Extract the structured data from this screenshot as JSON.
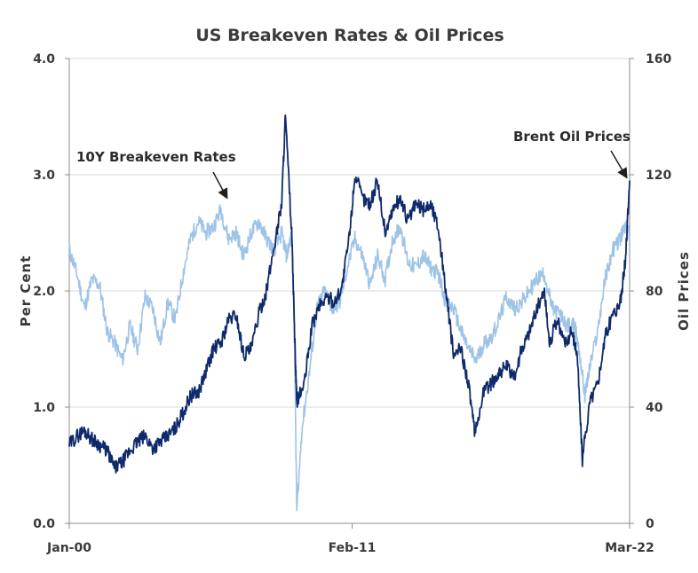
{
  "chart_data": {
    "type": "line",
    "title": "US Breakeven Rates & Oil Prices",
    "ylabel": "Per Cent",
    "y2label": "Oil Prices",
    "ylim": [
      0.0,
      4.0
    ],
    "y2lim": [
      0,
      160
    ],
    "yticks": [
      "0.0",
      "1.0",
      "2.0",
      "3.0",
      "4.0"
    ],
    "y2ticks": [
      "0",
      "40",
      "80",
      "120",
      "160"
    ],
    "xticks": [
      "Jan-00",
      "Feb-11",
      "Mar-22"
    ],
    "xlim": [
      2000.0,
      2022.17
    ],
    "grid": true,
    "colors": {
      "breakeven": "#9dc3e6",
      "oil": "#0f2a6b",
      "grid": "#d9d9d9",
      "axis": "#8c8c8c"
    },
    "annotations": [
      {
        "text": "10Y Breakeven Rates",
        "series": "breakeven"
      },
      {
        "text": "Brent Oil Prices",
        "series": "oil"
      }
    ],
    "series": [
      {
        "key": "breakeven",
        "axis": "left",
        "x": [
          2000.0,
          2000.3,
          2000.6,
          2000.9,
          2001.2,
          2001.5,
          2001.8,
          2002.1,
          2002.4,
          2002.7,
          2003.0,
          2003.3,
          2003.6,
          2003.9,
          2004.2,
          2004.5,
          2004.8,
          2005.1,
          2005.4,
          2005.7,
          2006.0,
          2006.3,
          2006.6,
          2006.9,
          2007.2,
          2007.5,
          2007.8,
          2008.1,
          2008.4,
          2008.6,
          2008.8,
          2008.9,
          2009.0,
          2009.2,
          2009.5,
          2009.8,
          2010.1,
          2010.4,
          2010.7,
          2011.0,
          2011.3,
          2011.6,
          2011.9,
          2012.2,
          2012.5,
          2012.8,
          2013.1,
          2013.4,
          2013.7,
          2014.0,
          2014.3,
          2014.6,
          2014.9,
          2015.2,
          2015.5,
          2015.8,
          2016.1,
          2016.4,
          2016.7,
          2017.0,
          2017.3,
          2017.6,
          2017.9,
          2018.2,
          2018.5,
          2018.8,
          2019.1,
          2019.4,
          2019.7,
          2020.0,
          2020.2,
          2020.4,
          2020.6,
          2020.9,
          2021.2,
          2021.5,
          2021.8,
          2022.0,
          2022.17
        ],
        "y": [
          2.35,
          2.15,
          1.85,
          2.1,
          2.05,
          1.65,
          1.55,
          1.4,
          1.7,
          1.5,
          1.95,
          1.85,
          1.55,
          1.9,
          1.75,
          2.15,
          2.45,
          2.6,
          2.5,
          2.55,
          2.7,
          2.45,
          2.5,
          2.3,
          2.5,
          2.6,
          2.45,
          2.35,
          2.5,
          2.3,
          2.5,
          1.8,
          0.1,
          0.8,
          1.3,
          1.85,
          2.0,
          1.85,
          1.9,
          2.2,
          2.45,
          2.3,
          2.05,
          2.3,
          2.1,
          2.45,
          2.55,
          2.25,
          2.2,
          2.3,
          2.2,
          2.15,
          1.9,
          1.85,
          1.65,
          1.5,
          1.4,
          1.55,
          1.6,
          1.75,
          1.95,
          1.85,
          1.9,
          2.0,
          2.1,
          2.15,
          1.85,
          1.8,
          1.7,
          1.7,
          1.45,
          1.1,
          1.35,
          1.65,
          2.1,
          2.35,
          2.45,
          2.55,
          2.5
        ]
      },
      {
        "key": "oil",
        "axis": "right",
        "x": [
          2000.0,
          2000.3,
          2000.6,
          2000.9,
          2001.2,
          2001.5,
          2001.8,
          2002.1,
          2002.4,
          2002.7,
          2003.0,
          2003.3,
          2003.6,
          2003.9,
          2004.2,
          2004.5,
          2004.8,
          2005.1,
          2005.4,
          2005.7,
          2006.0,
          2006.3,
          2006.6,
          2006.9,
          2007.2,
          2007.5,
          2007.8,
          2008.1,
          2008.4,
          2008.55,
          2008.8,
          2008.95,
          2009.0,
          2009.3,
          2009.6,
          2009.9,
          2010.2,
          2010.5,
          2010.8,
          2011.1,
          2011.3,
          2011.6,
          2011.9,
          2012.2,
          2012.5,
          2012.8,
          2013.1,
          2013.4,
          2013.7,
          2014.0,
          2014.3,
          2014.6,
          2014.9,
          2015.2,
          2015.5,
          2015.8,
          2016.05,
          2016.4,
          2016.7,
          2017.0,
          2017.3,
          2017.6,
          2017.9,
          2018.2,
          2018.5,
          2018.8,
          2019.0,
          2019.3,
          2019.6,
          2019.9,
          2020.1,
          2020.3,
          2020.6,
          2020.9,
          2021.2,
          2021.5,
          2021.8,
          2022.0,
          2022.17
        ],
        "y": [
          27,
          30,
          32,
          29,
          27,
          25,
          19,
          21,
          25,
          28,
          30,
          26,
          28,
          30,
          33,
          38,
          44,
          45,
          52,
          60,
          62,
          70,
          72,
          58,
          60,
          72,
          80,
          95,
          110,
          140,
          100,
          55,
          42,
          48,
          68,
          75,
          78,
          76,
          82,
          100,
          120,
          112,
          110,
          118,
          100,
          108,
          112,
          104,
          110,
          108,
          110,
          102,
          80,
          58,
          60,
          48,
          30,
          46,
          48,
          52,
          54,
          50,
          60,
          66,
          74,
          80,
          62,
          70,
          62,
          66,
          58,
          22,
          42,
          48,
          64,
          72,
          76,
          90,
          118
        ]
      }
    ]
  }
}
